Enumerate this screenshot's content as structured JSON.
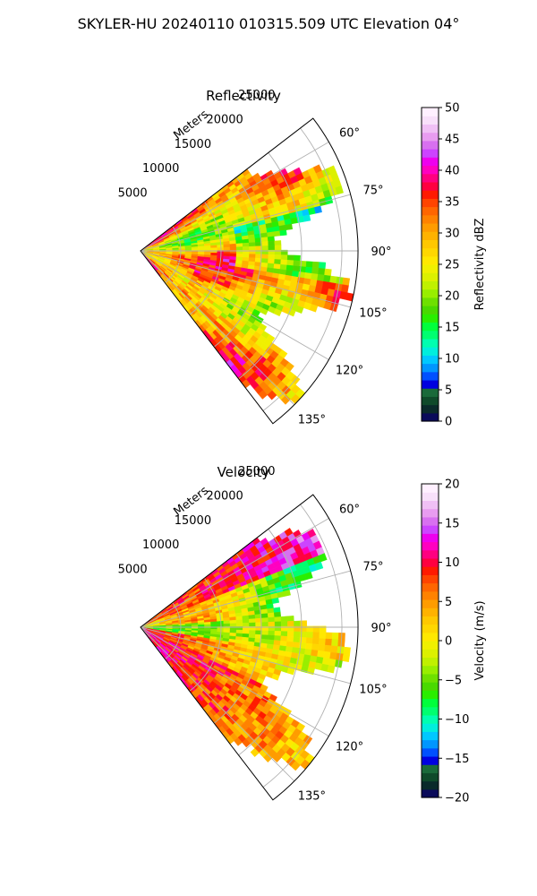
{
  "figure_title": "SKYLER-HU  20240110  010315.509 UTC Elevation 04°",
  "chart_data": [
    {
      "type": "heatmap",
      "subtype": "polar-sector-ppi",
      "title": "Reflectivity",
      "radial_axis_label": "Meters",
      "radial_ticks": [
        5000,
        10000,
        15000,
        20000,
        25000
      ],
      "range_max_m": 27000,
      "azimuth_range_deg": [
        52.5,
        142.5
      ],
      "azimuth_ticks": [
        "60°",
        "75°",
        "90°",
        "105°",
        "120°",
        "135°"
      ],
      "colorbar": {
        "label": "Reflectivity dBZ",
        "vmin": 0,
        "vmax": 50,
        "ticks": [
          "0",
          "5",
          "10",
          "15",
          "20",
          "25",
          "30",
          "35",
          "40",
          "45",
          "50"
        ],
        "colors": [
          "#0a0a5a",
          "#0a2a2a",
          "#0f4a2a",
          "#1a6a3a",
          "#0000e0",
          "#0050ff",
          "#0096ff",
          "#00c8ff",
          "#00eedd",
          "#00ffb0",
          "#00ff70",
          "#00ff3c",
          "#2aee00",
          "#4ad900",
          "#6ee000",
          "#98ee00",
          "#c0f000",
          "#dcf000",
          "#f0f000",
          "#ffe800",
          "#ffd700",
          "#ffc800",
          "#ffb200",
          "#ff9c00",
          "#ff8200",
          "#ff6600",
          "#ff4400",
          "#ff1a00",
          "#ff0040",
          "#ff0080",
          "#ff00c0",
          "#ee00ee",
          "#cc44ff",
          "#d870f0",
          "#e89cf0",
          "#f0c0f5",
          "#f8e0fa",
          "#fff0ff"
        ]
      }
    },
    {
      "type": "heatmap",
      "subtype": "polar-sector-ppi",
      "title": "Velocity",
      "radial_axis_label": "Meters",
      "radial_ticks": [
        5000,
        10000,
        15000,
        20000,
        25000
      ],
      "range_max_m": 27000,
      "azimuth_range_deg": [
        52.5,
        142.5
      ],
      "azimuth_ticks": [
        "60°",
        "75°",
        "90°",
        "105°",
        "120°",
        "135°"
      ],
      "colorbar": {
        "label": "Velocity (m/s)",
        "vmin": -20,
        "vmax": 20,
        "ticks": [
          "−20",
          "−15",
          "−10",
          "−5",
          "0",
          "5",
          "10",
          "15",
          "20"
        ],
        "colors": [
          "#0a0a5a",
          "#0a2a2a",
          "#0f4a2a",
          "#1a6a3a",
          "#0000e0",
          "#0050ff",
          "#0096ff",
          "#00c8ff",
          "#00eedd",
          "#00ffb0",
          "#00ff70",
          "#00ff3c",
          "#2aee00",
          "#4ad900",
          "#6ee000",
          "#98ee00",
          "#c0f000",
          "#dcf000",
          "#f0f000",
          "#ffe800",
          "#ffd700",
          "#ffc800",
          "#ffb200",
          "#ff9c00",
          "#ff8200",
          "#ff6600",
          "#ff4400",
          "#ff1a00",
          "#ff0040",
          "#ff0080",
          "#ff00c0",
          "#ee00ee",
          "#cc44ff",
          "#d870f0",
          "#e89cf0",
          "#f0c0f5",
          "#f8e0fa",
          "#fff0ff"
        ]
      }
    }
  ]
}
